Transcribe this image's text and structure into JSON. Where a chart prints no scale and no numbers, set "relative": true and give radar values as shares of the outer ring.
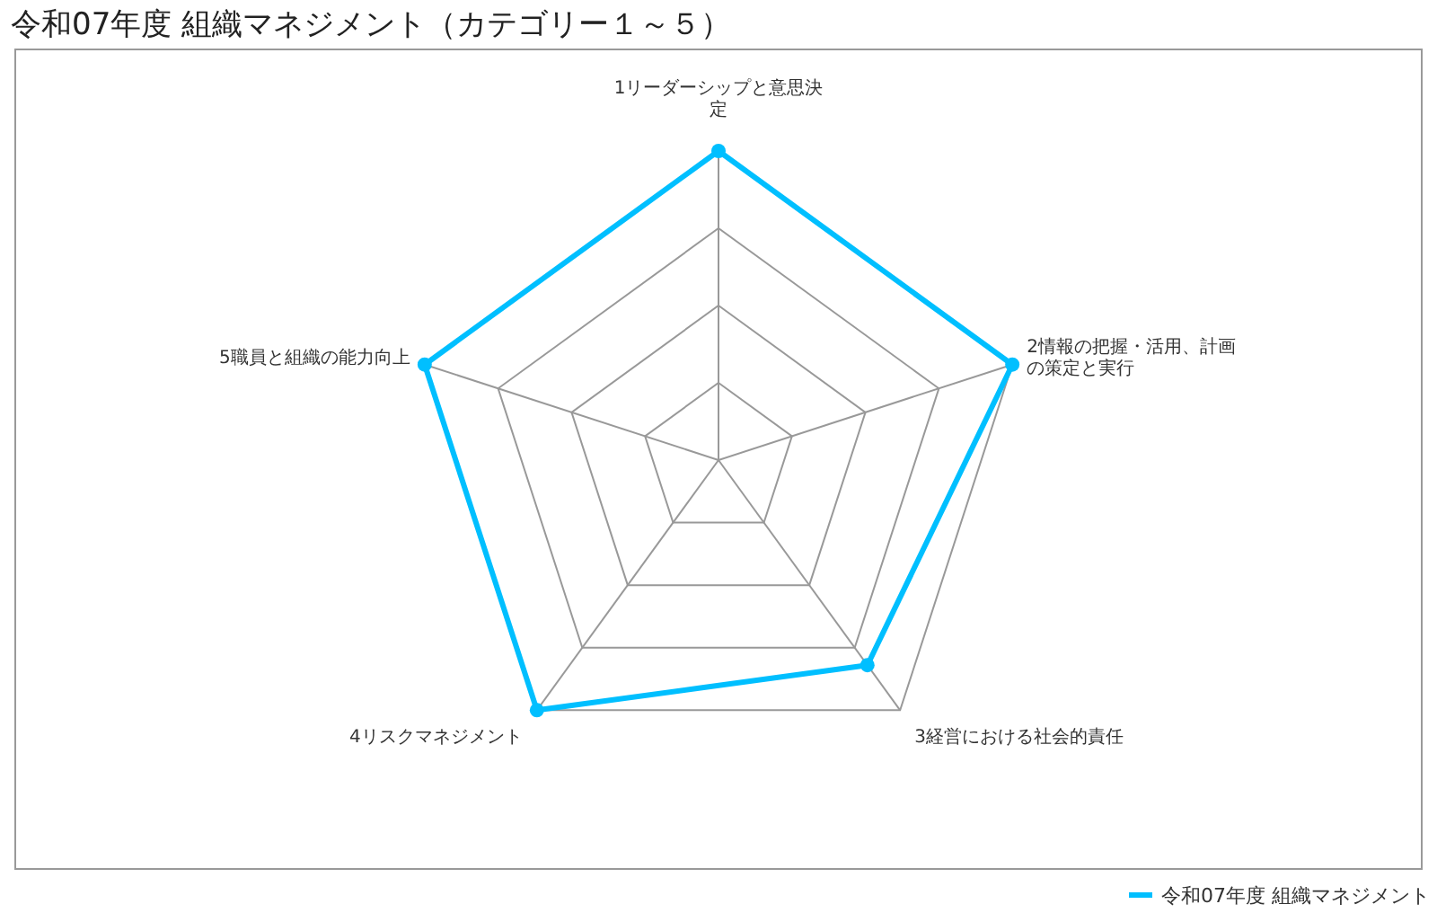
{
  "chart_data": {
    "type": "radar",
    "title": "令和07年度 組織マネジメント（カテゴリー１～５）",
    "categories": [
      "1リーダーシップと意思決定",
      "2情報の把握・活用、計画の策定と実行",
      "3経営における社会的責任",
      "4リスクマネジメント",
      "5職員と組織の能力向上"
    ],
    "relative": true,
    "series": [
      {
        "name": "令和07年度 組織マネジメント",
        "color": "#00bfff",
        "values": [
          1,
          1,
          0.82,
          1,
          1
        ]
      }
    ],
    "marker": "circle",
    "legend": "bottom right"
  }
}
